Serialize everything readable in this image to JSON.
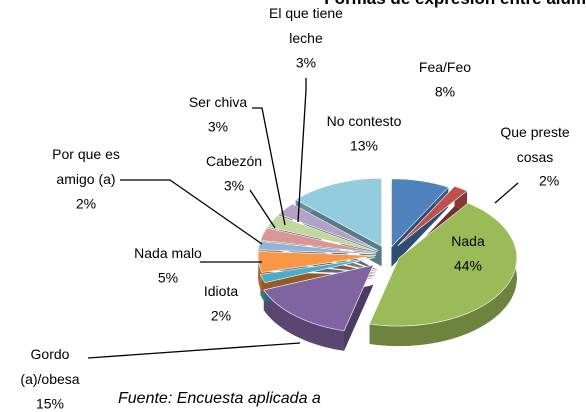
{
  "chart_data": {
    "type": "pie",
    "title": "Formas de expresión entre alum",
    "categories": [
      "Fea/Feo",
      "Que preste cosas",
      "Nada",
      "Gordo (a)/obesa",
      "Idiota",
      "Nada malo",
      "Por que es amigo (a)",
      "Cabezón",
      "Ser chiva",
      "El que tiene leche",
      "No contesto"
    ],
    "values": [
      8,
      2,
      44,
      15,
      2,
      5,
      2,
      3,
      3,
      3,
      13
    ],
    "value_labels": [
      "8%",
      "2%",
      "44%",
      "15%",
      "2%",
      "5%",
      "2%",
      "3%",
      "3%",
      "3%",
      "13%"
    ],
    "colors": [
      "#4f81bd",
      "#c0504d",
      "#9bbb59",
      "#8064a2",
      "#4bacc6",
      "#f79646",
      "#95b3d7",
      "#d99694",
      "#c3d69b",
      "#b3a2c7",
      "#93cddd"
    ],
    "source": "Fuente: Encuesta aplicada a"
  }
}
